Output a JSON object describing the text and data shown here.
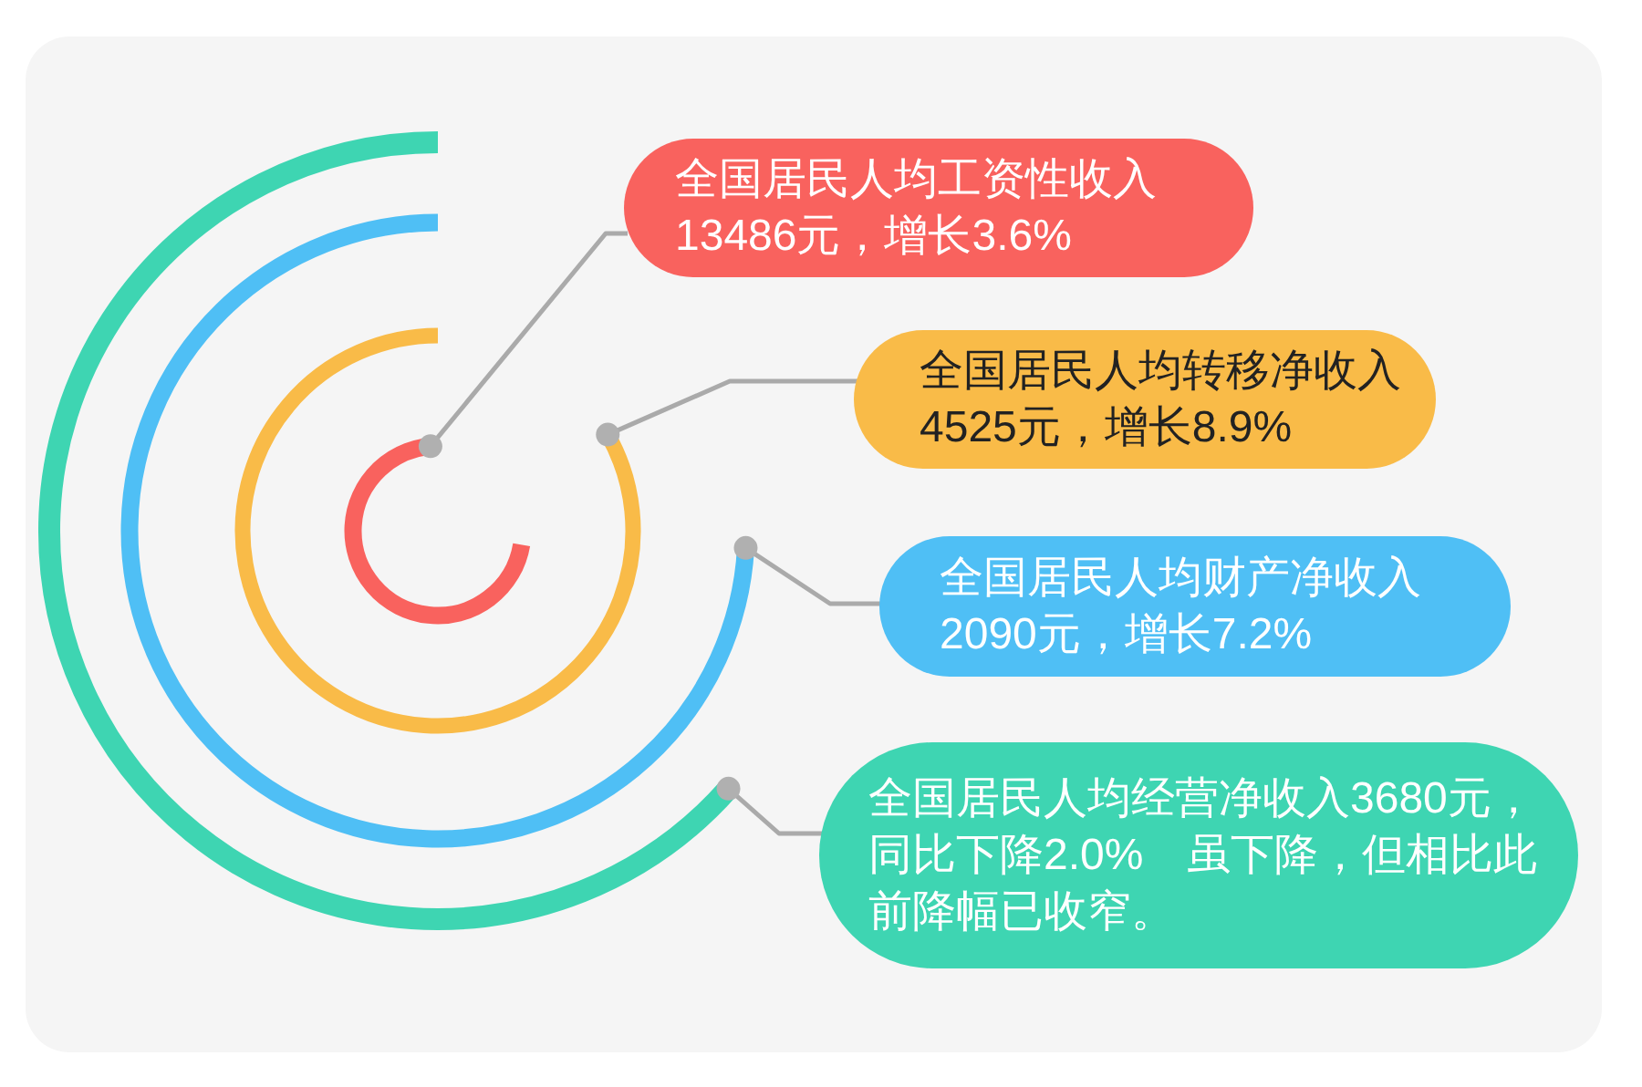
{
  "chart_data": {
    "type": "other",
    "categories": [
      "全国居民人均工资性收入",
      "全国居民人均转移净收入",
      "全国居民人均财产净收入",
      "全国居民人均经营净收入"
    ],
    "values": [
      13486,
      4525,
      2090,
      3680
    ],
    "value_labels": [
      "13486元，增长3.6%",
      "4525元，增长8.9%",
      "2090元，增长7.2%",
      "3680元，同比下降2.0%　虽下降，但相比此前降幅已收窄。"
    ],
    "colors": [
      "#f9625e",
      "#f9bb48",
      "#4fbff5",
      "#3ed5b2"
    ]
  }
}
